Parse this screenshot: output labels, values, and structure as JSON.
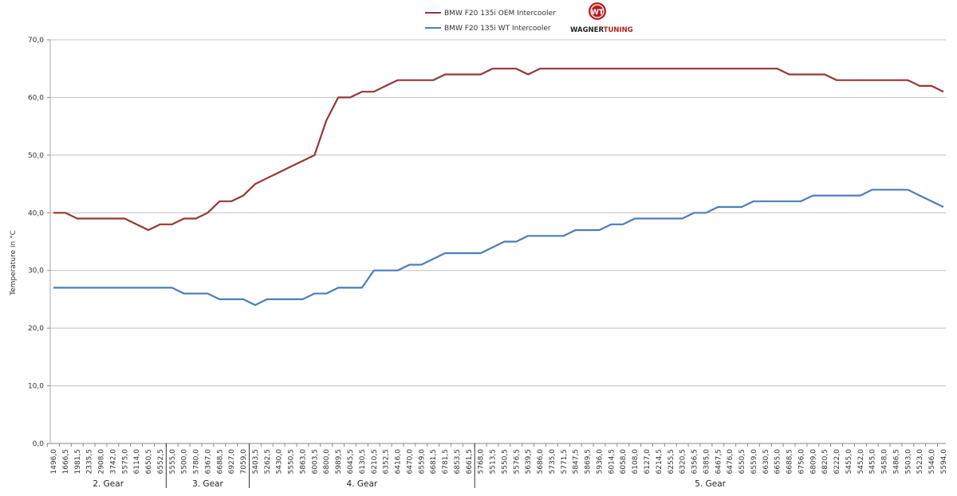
{
  "chart_data": {
    "type": "line",
    "title": "",
    "xlabel": "",
    "ylabel": "Temperature in °C",
    "ylim": [
      0,
      70
    ],
    "yticks": [
      "0,0",
      "10,0",
      "20,0",
      "30,0",
      "40,0",
      "50,0",
      "60,0",
      "70,0"
    ],
    "grid": "horizontal",
    "legend_position": "top-center",
    "categories": [
      "1496,0",
      "1666,5",
      "1981,5",
      "2335,5",
      "2908,0",
      "3742,0",
      "5575,0",
      "6114,0",
      "6650,5",
      "6552,5",
      "5555,0",
      "5500,0",
      "5780,0",
      "6367,0",
      "6688,5",
      "6927,0",
      "7059,0",
      "5403,5",
      "5262,5",
      "5430,0",
      "5550,5",
      "5863,0",
      "6003,5",
      "6800,0",
      "5989,5",
      "6045,5",
      "6130,5",
      "6210,5",
      "6352,5",
      "6416,0",
      "6470,0",
      "6559,0",
      "6681,5",
      "6781,5",
      "6853,5",
      "6661,5",
      "5768,0",
      "5513,5",
      "5550,5",
      "5576,5",
      "5639,5",
      "5686,0",
      "5735,0",
      "5771,5",
      "5847,5",
      "5869,5",
      "5936,0",
      "6014,5",
      "6058,0",
      "6108,0",
      "6127,0",
      "6214,5",
      "6255,5",
      "6320,5",
      "6356,5",
      "6385,0",
      "6467,5",
      "6476,0",
      "6550,5",
      "6559,0",
      "6630,5",
      "6655,0",
      "6688,5",
      "6756,0",
      "6809,0",
      "6820,5",
      "6222,0",
      "5455,0",
      "5452,0",
      "5455,0",
      "5458,0",
      "5486,5",
      "5503,0",
      "5523,0",
      "5546,0",
      "5594,0"
    ],
    "groups": [
      {
        "label": "2. Gear",
        "count": 10
      },
      {
        "label": "3. Gear",
        "count": 7
      },
      {
        "label": "4. Gear",
        "count": 19
      },
      {
        "label": "5. Gear",
        "count": 40
      }
    ],
    "series": [
      {
        "name": "BMW F20 135i OEM Intercooler",
        "color": "#953735",
        "values": [
          40,
          40,
          39,
          39,
          39,
          39,
          39,
          38,
          37,
          38,
          38,
          39,
          39,
          40,
          42,
          42,
          43,
          45,
          46,
          47,
          48,
          49,
          50,
          56,
          60,
          60,
          61,
          61,
          62,
          63,
          63,
          63,
          63,
          64,
          64,
          64,
          64,
          65,
          65,
          65,
          64,
          65,
          65,
          65,
          65,
          65,
          65,
          65,
          65,
          65,
          65,
          65,
          65,
          65,
          65,
          65,
          65,
          65,
          65,
          65,
          65,
          65,
          64,
          64,
          64,
          64,
          63,
          63,
          63,
          63,
          63,
          63,
          63,
          62,
          62,
          61
        ]
      },
      {
        "name": "BMW F20 135i WT Intercooler",
        "color": "#4a7ebb",
        "values": [
          27,
          27,
          27,
          27,
          27,
          27,
          27,
          27,
          27,
          27,
          27,
          26,
          26,
          26,
          25,
          25,
          25,
          24,
          25,
          25,
          25,
          25,
          26,
          26,
          27,
          27,
          27,
          30,
          30,
          30,
          31,
          31,
          32,
          33,
          33,
          33,
          33,
          34,
          35,
          35,
          36,
          36,
          36,
          36,
          37,
          37,
          37,
          38,
          38,
          39,
          39,
          39,
          39,
          39,
          40,
          40,
          41,
          41,
          41,
          42,
          42,
          42,
          42,
          42,
          43,
          43,
          43,
          43,
          43,
          44,
          44,
          44,
          44,
          43,
          42,
          41
        ]
      }
    ]
  },
  "logo": {
    "text": "WAGNERTUNING",
    "monogram": "WT",
    "color": "#b5211f"
  }
}
